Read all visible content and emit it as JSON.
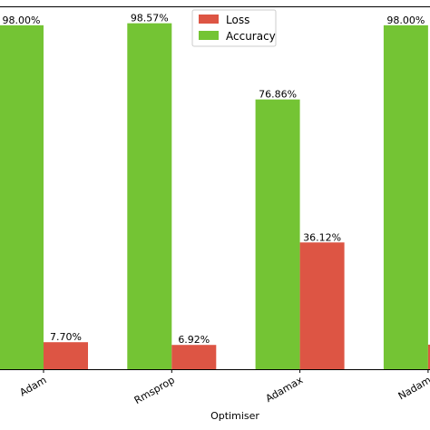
{
  "chart_data": {
    "type": "bar",
    "title": "",
    "xlabel": "Optimiser",
    "ylabel": "",
    "categories": [
      "Adam",
      "Rmsprop",
      "Adamax",
      "Nadam"
    ],
    "series": [
      {
        "name": "Loss",
        "color": "#dd5544",
        "values": [
          7.7,
          6.92,
          36.12,
          7.0
        ]
      },
      {
        "name": "Accuracy",
        "color": "#74c434",
        "values": [
          98.0,
          98.57,
          76.86,
          98.0
        ]
      }
    ],
    "data_labels": {
      "Loss": [
        "7.70%",
        "6.92%",
        "36.12%",
        ""
      ],
      "Accuracy": [
        "98.00%",
        "98.57%",
        "76.86%",
        "98.00%"
      ]
    },
    "ylim": [
      0,
      100
    ],
    "grid": false,
    "legend_position": "top-center"
  }
}
